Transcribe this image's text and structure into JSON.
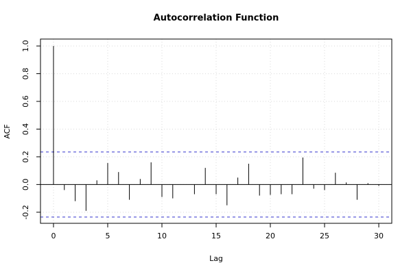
{
  "chart_data": {
    "type": "bar",
    "title": "Autocorrelation Function",
    "xlabel": "Lag",
    "ylabel": "ACF",
    "xlim": [
      -1.2,
      31.2
    ],
    "ylim": [
      -0.28,
      1.05
    ],
    "x_ticks": [
      0,
      5,
      10,
      15,
      20,
      25,
      30
    ],
    "y_ticks": [
      -0.2,
      0.0,
      0.2,
      0.4,
      0.6,
      0.8,
      1.0
    ],
    "y_tick_labels": [
      "-0.2",
      "0.0",
      "0.2",
      "0.4",
      "0.6",
      "0.8",
      "1.0"
    ],
    "grid": true,
    "lags": [
      0,
      1,
      2,
      3,
      4,
      5,
      6,
      7,
      8,
      9,
      10,
      11,
      12,
      13,
      14,
      15,
      16,
      17,
      18,
      19,
      20,
      21,
      22,
      23,
      24,
      25,
      26,
      27,
      28,
      29,
      30
    ],
    "values": [
      1.0,
      -0.04,
      -0.12,
      -0.19,
      0.03,
      0.155,
      0.09,
      -0.11,
      0.04,
      0.16,
      -0.09,
      -0.1,
      0.0,
      -0.07,
      0.12,
      -0.07,
      -0.15,
      0.05,
      0.15,
      -0.08,
      -0.075,
      -0.07,
      -0.07,
      0.195,
      -0.03,
      -0.04,
      0.085,
      0.015,
      -0.11,
      0.01,
      -0.01
    ],
    "confidence_bound": 0.235,
    "colors": {
      "bars": "#000000",
      "confidence": "#3333cc",
      "grid": "#d9d9d9"
    }
  }
}
